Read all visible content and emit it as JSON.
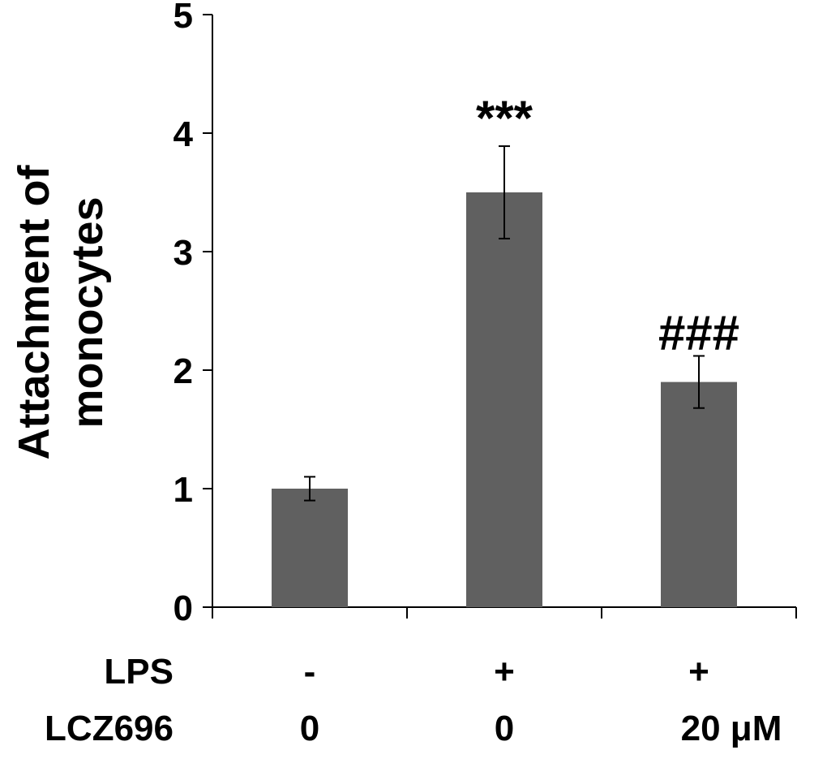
{
  "chart_data": {
    "type": "bar",
    "ylabel": "Attachment of monocytes",
    "ylabel_lines": [
      "Attachment of",
      "monocytes"
    ],
    "ylim": [
      0,
      5
    ],
    "yticks": [
      0,
      1,
      2,
      3,
      4,
      5
    ],
    "grid": false,
    "bar_color": "#606060",
    "values": [
      1.0,
      3.5,
      1.9
    ],
    "errors": [
      0.1,
      0.39,
      0.22
    ],
    "annotations": [
      "",
      "***",
      "###"
    ],
    "conditions": [
      {
        "label": "LPS",
        "values": [
          "-",
          "+",
          "+"
        ]
      },
      {
        "label": "LCZ696",
        "values": [
          "0",
          "0",
          "20 μM"
        ]
      }
    ]
  }
}
